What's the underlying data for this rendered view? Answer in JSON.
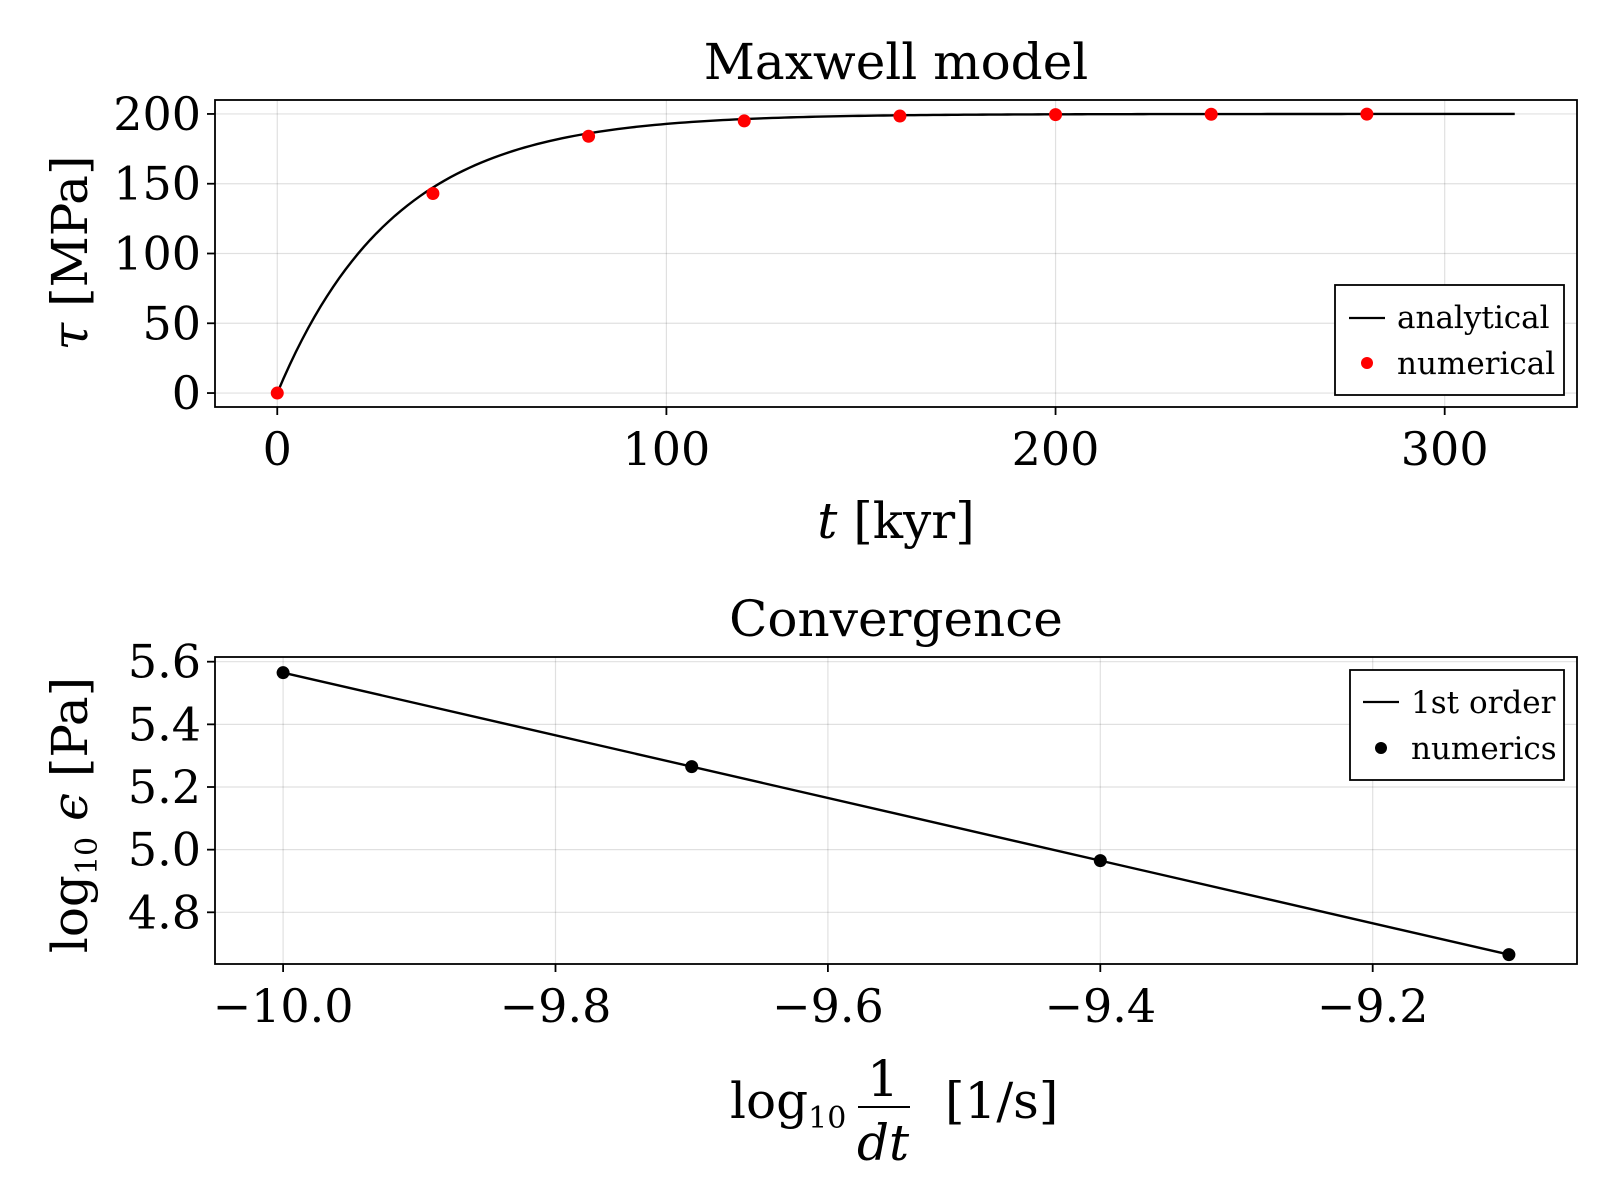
{
  "chart_data": [
    {
      "type": "line",
      "title": "Maxwell model",
      "xlabel": "t [kyr]",
      "ylabel": "τ [MPa]",
      "xlim": [
        -16,
        334
      ],
      "ylim": [
        -10,
        210
      ],
      "xticks": [
        0,
        100,
        200,
        300
      ],
      "xtick_labels": [
        "0",
        "100",
        "200",
        "300"
      ],
      "yticks": [
        0,
        50,
        100,
        150,
        200
      ],
      "ytick_labels": [
        "0",
        "50",
        "100",
        "150",
        "200"
      ],
      "grid": true,
      "legend_position": "bottom-right",
      "series": [
        {
          "name": "analytical",
          "kind": "line",
          "color": "#000000",
          "function": "200*(1-exp(-t/30))",
          "x_range": [
            0,
            318
          ]
        },
        {
          "name": "numerical",
          "kind": "scatter",
          "color": "#ff0000",
          "x": [
            0,
            40,
            80,
            120,
            160,
            200,
            240,
            280
          ],
          "y": [
            0,
            143,
            184,
            195,
            198.5,
            199.5,
            199.8,
            199.9
          ]
        }
      ]
    },
    {
      "type": "line",
      "title": "Convergence",
      "xlabel": "log10 1/dt [1/s]",
      "ylabel": "log10 ϵ [Pa]",
      "xlim": [
        -10.05,
        -9.05
      ],
      "ylim": [
        4.635,
        5.615
      ],
      "xticks": [
        -10.0,
        -9.8,
        -9.6,
        -9.4,
        -9.2
      ],
      "xtick_labels": [
        "−10.0",
        "−9.8",
        "−9.6",
        "−9.4",
        "−9.2"
      ],
      "yticks": [
        4.8,
        5.0,
        5.2,
        5.4,
        5.6
      ],
      "ytick_labels": [
        "4.8",
        "5.0",
        "5.2",
        "5.4",
        "5.6"
      ],
      "grid": true,
      "legend_position": "top-right",
      "series": [
        {
          "name": "1st order",
          "kind": "line",
          "color": "#000000",
          "x": [
            -10.0,
            -9.1
          ],
          "y": [
            5.565,
            4.665
          ]
        },
        {
          "name": "numerics",
          "kind": "scatter",
          "color": "#000000",
          "x": [
            -10.0,
            -9.7,
            -9.4,
            -9.1
          ],
          "y": [
            5.565,
            5.265,
            4.965,
            4.665
          ]
        }
      ]
    }
  ]
}
